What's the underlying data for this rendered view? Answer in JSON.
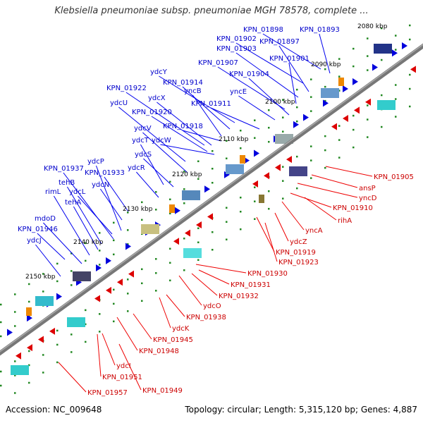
{
  "title": "Klebsiella pneumoniae subsp. pneumoniae MGH 78578, complete ...",
  "accession": "Accession: NC_009648",
  "topology": "Topology: circular; Length: 5,315,120 bp; Genes: 4,887",
  "colors": {
    "forward": "#0000cc",
    "reverse": "#cc0000",
    "backbone": "#777777",
    "tick": "#228822"
  },
  "kbp_ticks": [
    "2080 kbp",
    "2090 kbp",
    "2100 kbp",
    "2110 kbp",
    "2120 kbp",
    "2130 kbp",
    "2140 kbp",
    "2150 kbp"
  ],
  "forward_labels": [
    "KPN_01898",
    "KPN_01893",
    "KPN_01902",
    "KPN_01897",
    "KPN_01903",
    "KPN_01901",
    "KPN_01907",
    "KPN_01904",
    "ydcY",
    "KPN_01914",
    "KPN_01922",
    "yncB",
    "yncE",
    "ydcX",
    "ydcU",
    "KPN_01911",
    "KPN_01920",
    "ydcV",
    "KPN_01918",
    "ydcT",
    "ydcW",
    "ydcS",
    "ydcP",
    "ydcR",
    "KPN_01937",
    "KPN_01933",
    "tehB",
    "ydcN",
    "rimL",
    "ydcL",
    "tehA",
    "mdoD",
    "KPN_01946",
    "ydcJ"
  ],
  "reverse_labels": [
    "KPN_01905",
    "ansP",
    "yncD",
    "KPN_01910",
    "rihA",
    "yncA",
    "ydcZ",
    "KPN_01919",
    "KPN_01923",
    "KPN_01930",
    "KPN_01931",
    "KPN_01932",
    "ydcO",
    "KPN_01938",
    "ydcK",
    "KPN_01945",
    "KPN_01948",
    "ydcI",
    "KPN_01951",
    "KPN_01949",
    "KPN_01957"
  ]
}
